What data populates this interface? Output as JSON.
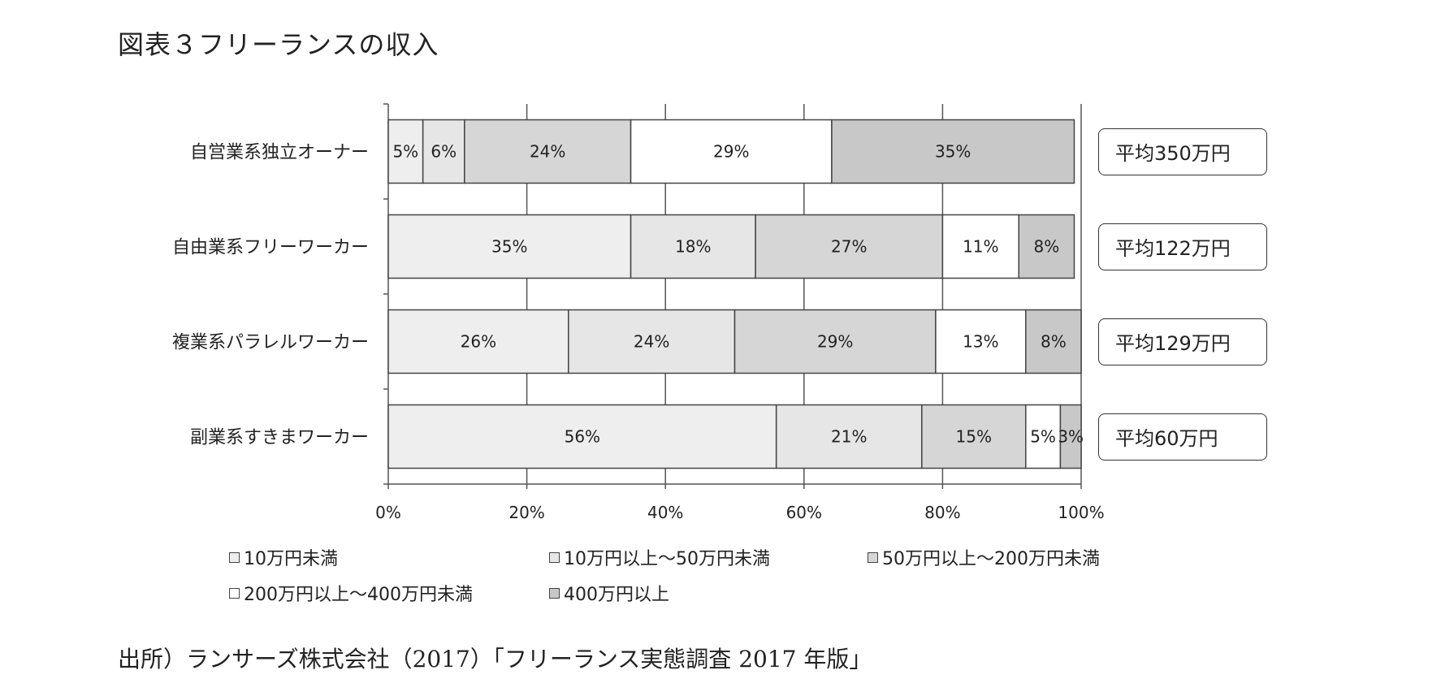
{
  "title": "図表３フリーランスの収入",
  "source": "出所）ランサーズ株式会社（2017）「フリーランス実態調査 2017 年版」",
  "colors": [
    "#eeeeee",
    "#e6e6e6",
    "#d6d6d6",
    "#ffffff",
    "#c8c8c8"
  ],
  "chart_data": {
    "type": "bar",
    "orientation": "horizontal-stacked-percent",
    "categories": [
      "自営業系独立オーナー",
      "自由業系フリーワーカー",
      "複業系パラレルワーカー",
      "副業系すきまワーカー"
    ],
    "series": [
      {
        "name": "10万円未満",
        "values": [
          5,
          35,
          26,
          56
        ]
      },
      {
        "name": "10万円以上～50万円未満",
        "values": [
          6,
          18,
          24,
          21
        ]
      },
      {
        "name": "50万円以上～200万円未満",
        "values": [
          24,
          27,
          29,
          15
        ]
      },
      {
        "name": "200万円以上～400万円未満",
        "values": [
          29,
          11,
          13,
          5
        ]
      },
      {
        "name": "400万円以上",
        "values": [
          35,
          8,
          8,
          3
        ]
      }
    ],
    "data_labels": [
      [
        "5%",
        "6%",
        "24%",
        "29%",
        "35%"
      ],
      [
        "35%",
        "18%",
        "27%",
        "11%",
        "8%"
      ],
      [
        "26%",
        "24%",
        "29%",
        "13%",
        "8%"
      ],
      [
        "56%",
        "21%",
        "15%",
        "5%",
        "3%"
      ]
    ],
    "xticks": [
      "0%",
      "20%",
      "40%",
      "60%",
      "80%",
      "100%"
    ],
    "xlim": [
      0,
      100
    ],
    "grid": true,
    "legend_position": "bottom",
    "annotations": [
      "平均350万円",
      "平均122万円",
      "平均129万円",
      "平均60万円"
    ]
  }
}
